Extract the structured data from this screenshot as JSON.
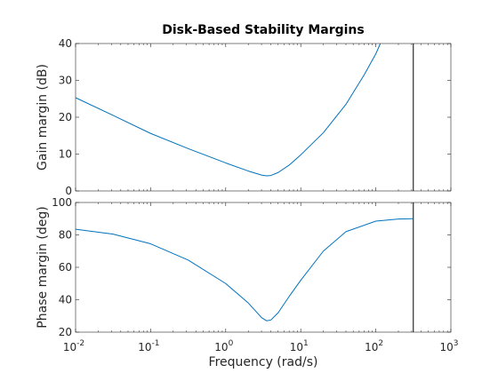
{
  "chart_data": {
    "type": "line",
    "title": "Disk-Based Stability Margins",
    "xlabel": "Frequency (rad/s)",
    "xscale": "log",
    "xlim": [
      0.01,
      1000
    ],
    "xticks": [
      {
        "value": 0.01,
        "base": "10",
        "exp": "-2"
      },
      {
        "value": 0.1,
        "base": "10",
        "exp": "-1"
      },
      {
        "value": 1,
        "base": "10",
        "exp": "0"
      },
      {
        "value": 10,
        "base": "10",
        "exp": "1"
      },
      {
        "value": 100,
        "base": "10",
        "exp": "2"
      },
      {
        "value": 1000,
        "base": "10",
        "exp": "3"
      }
    ],
    "line_color": "#0072BD",
    "marker_line_x": 316,
    "subplots": [
      {
        "ylabel": "Gain margin (dB)",
        "ylim": [
          0,
          40
        ],
        "yticks": [
          0,
          10,
          20,
          30,
          40
        ],
        "x": [
          0.01,
          0.0316,
          0.1,
          0.316,
          1,
          2,
          3,
          3.5,
          4,
          5,
          7,
          10,
          20,
          40,
          70,
          100,
          115
        ],
        "values": [
          25.3,
          20.5,
          15.6,
          11.5,
          7.6,
          5.4,
          4.3,
          4.1,
          4.2,
          5.0,
          7.0,
          9.8,
          15.8,
          23.5,
          31.5,
          37.2,
          40.0
        ]
      },
      {
        "ylabel": "Phase margin (deg)",
        "ylim": [
          20,
          100
        ],
        "yticks": [
          20,
          40,
          60,
          80,
          100
        ],
        "x": [
          0.01,
          0.0316,
          0.1,
          0.316,
          1,
          2,
          3,
          3.5,
          4,
          5,
          7,
          10,
          20,
          40,
          100,
          200,
          316
        ],
        "values": [
          83.5,
          80.5,
          74.5,
          64.5,
          50,
          38,
          29,
          27,
          27.5,
          32,
          42,
          52,
          70,
          82,
          88.5,
          89.8,
          90
        ]
      }
    ]
  }
}
